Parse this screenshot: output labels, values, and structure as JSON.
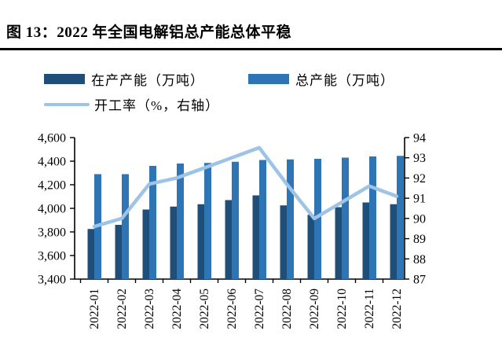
{
  "header": {
    "title": "图 13：2022 年全国电解铝总产能总体平稳"
  },
  "legend": [
    {
      "label": "在产产能（万吨）",
      "type": "bar",
      "color": "#1F4E79"
    },
    {
      "label": "总产能（万吨）",
      "type": "bar",
      "color": "#2E75B6"
    },
    {
      "label": "开工率（%，右轴）",
      "type": "line",
      "color": "#9DC3E6"
    }
  ],
  "chart_data": {
    "type": "bar+line combo",
    "title": "2022 年全国电解铝总产能总体平稳",
    "categories": [
      "2022-01",
      "2022-02",
      "2022-03",
      "2022-04",
      "2022-05",
      "2022-06",
      "2022-07",
      "2022-08",
      "2022-09",
      "2022-10",
      "2022-11",
      "2022-12"
    ],
    "series": [
      {
        "name": "在产产能（万吨）",
        "type": "bar",
        "axis": "left",
        "color": "#1F4E79",
        "values": [
          3825,
          3860,
          3990,
          4015,
          4035,
          4070,
          4110,
          4025,
          3945,
          4010,
          4050,
          4035
        ]
      },
      {
        "name": "总产能（万吨）",
        "type": "bar",
        "axis": "left",
        "color": "#2E75B6",
        "values": [
          4290,
          4290,
          4360,
          4380,
          4385,
          4395,
          4410,
          4415,
          4420,
          4430,
          4440,
          4445
        ]
      },
      {
        "name": "开工率（%，右轴）",
        "type": "line",
        "axis": "right",
        "color": "#9DC3E6",
        "values": [
          89.6,
          90.0,
          91.7,
          92.0,
          92.5,
          93.0,
          93.5,
          91.7,
          90.0,
          90.8,
          91.6,
          91.1
        ]
      }
    ],
    "left_axis": {
      "min": 3400,
      "max": 4600,
      "step": 200,
      "tick_labels": [
        "3,400",
        "3,600",
        "3,800",
        "4,000",
        "4,200",
        "4,400",
        "4,600"
      ]
    },
    "right_axis": {
      "min": 87,
      "max": 94,
      "step": 1,
      "tick_labels": [
        "87",
        "88",
        "89",
        "90",
        "91",
        "92",
        "93",
        "94"
      ]
    },
    "grid": false,
    "legend_position": "top"
  }
}
